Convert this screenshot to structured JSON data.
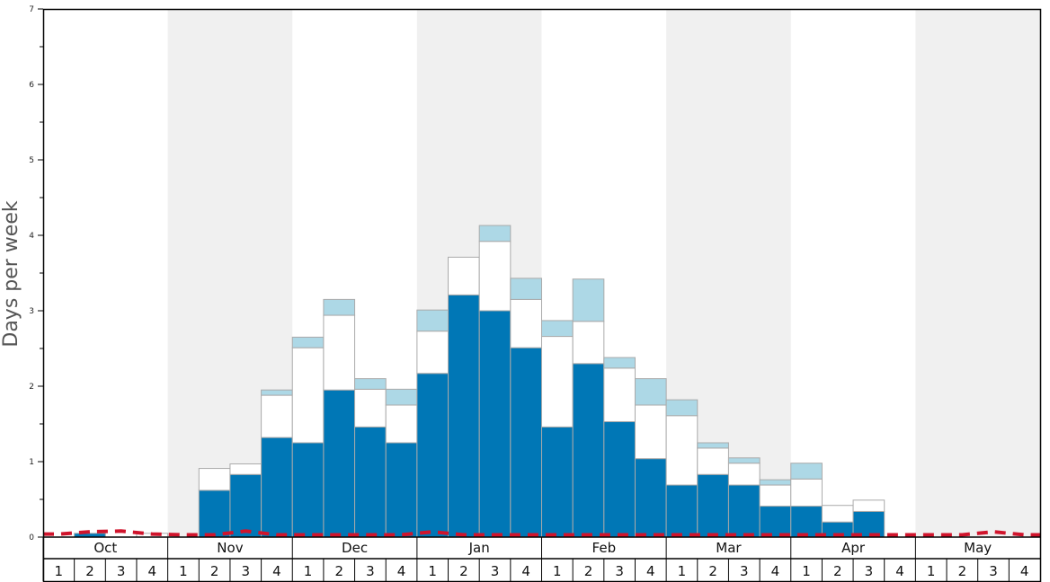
{
  "chart_data": {
    "type": "bar",
    "ylabel": "Days per week",
    "ylim": [
      0,
      7
    ],
    "yticks": [
      0,
      1,
      2,
      3,
      4,
      5,
      6,
      7
    ],
    "months": [
      "Oct",
      "Nov",
      "Dec",
      "Jan",
      "Feb",
      "Mar",
      "Apr",
      "May"
    ],
    "week_labels": [
      "1",
      "2",
      "3",
      "4"
    ],
    "colors": {
      "dark": "#0077b6",
      "mid": "#ffffff",
      "light": "#add8e6",
      "shade": "#f0f0f0",
      "dashed": "#d0142c",
      "stroke": "#aaaaaa"
    },
    "series": [
      {
        "name": "",
        "color": "#0077b6",
        "values": [
          0,
          0.05,
          0,
          0,
          0,
          0.62,
          0.83,
          1.32,
          1.25,
          1.95,
          1.46,
          1.25,
          2.17,
          3.21,
          3.0,
          2.51,
          1.46,
          2.3,
          1.53,
          1.04,
          0.69,
          0.83,
          0.69,
          0.41,
          0.41,
          0.2,
          0.34,
          0,
          0,
          0,
          0,
          0
        ]
      },
      {
        "name": "",
        "color": "#ffffff",
        "values": [
          0,
          0,
          0,
          0.05,
          0,
          0.29,
          0.14,
          0.56,
          1.26,
          0.99,
          0.5,
          0.5,
          0.56,
          0.5,
          0.92,
          0.64,
          1.2,
          0.56,
          0.71,
          0.71,
          0.92,
          0.35,
          0.29,
          0.28,
          0.36,
          0.22,
          0.15,
          0,
          0,
          0,
          0,
          0
        ]
      },
      {
        "name": "",
        "color": "#add8e6",
        "values": [
          0,
          0,
          0,
          0,
          0,
          0,
          0,
          0.07,
          0.14,
          0.21,
          0.14,
          0.21,
          0.28,
          0,
          0.21,
          0.28,
          0.21,
          0.56,
          0.14,
          0.35,
          0.21,
          0.07,
          0.07,
          0.07,
          0.21,
          0,
          0,
          0,
          0,
          0,
          0,
          0
        ]
      },
      {
        "name": "",
        "color": "#d0142c",
        "style": "dashed",
        "values": [
          0.04,
          0.07,
          0.08,
          0.04,
          0.03,
          0.03,
          0.08,
          0.03,
          0.03,
          0.03,
          0.03,
          0.03,
          0.07,
          0.03,
          0.03,
          0.03,
          0.03,
          0.03,
          0.03,
          0.03,
          0.03,
          0.03,
          0.03,
          0.03,
          0.03,
          0.03,
          0.03,
          0.03,
          0.03,
          0.03,
          0.07,
          0.03
        ]
      }
    ]
  }
}
